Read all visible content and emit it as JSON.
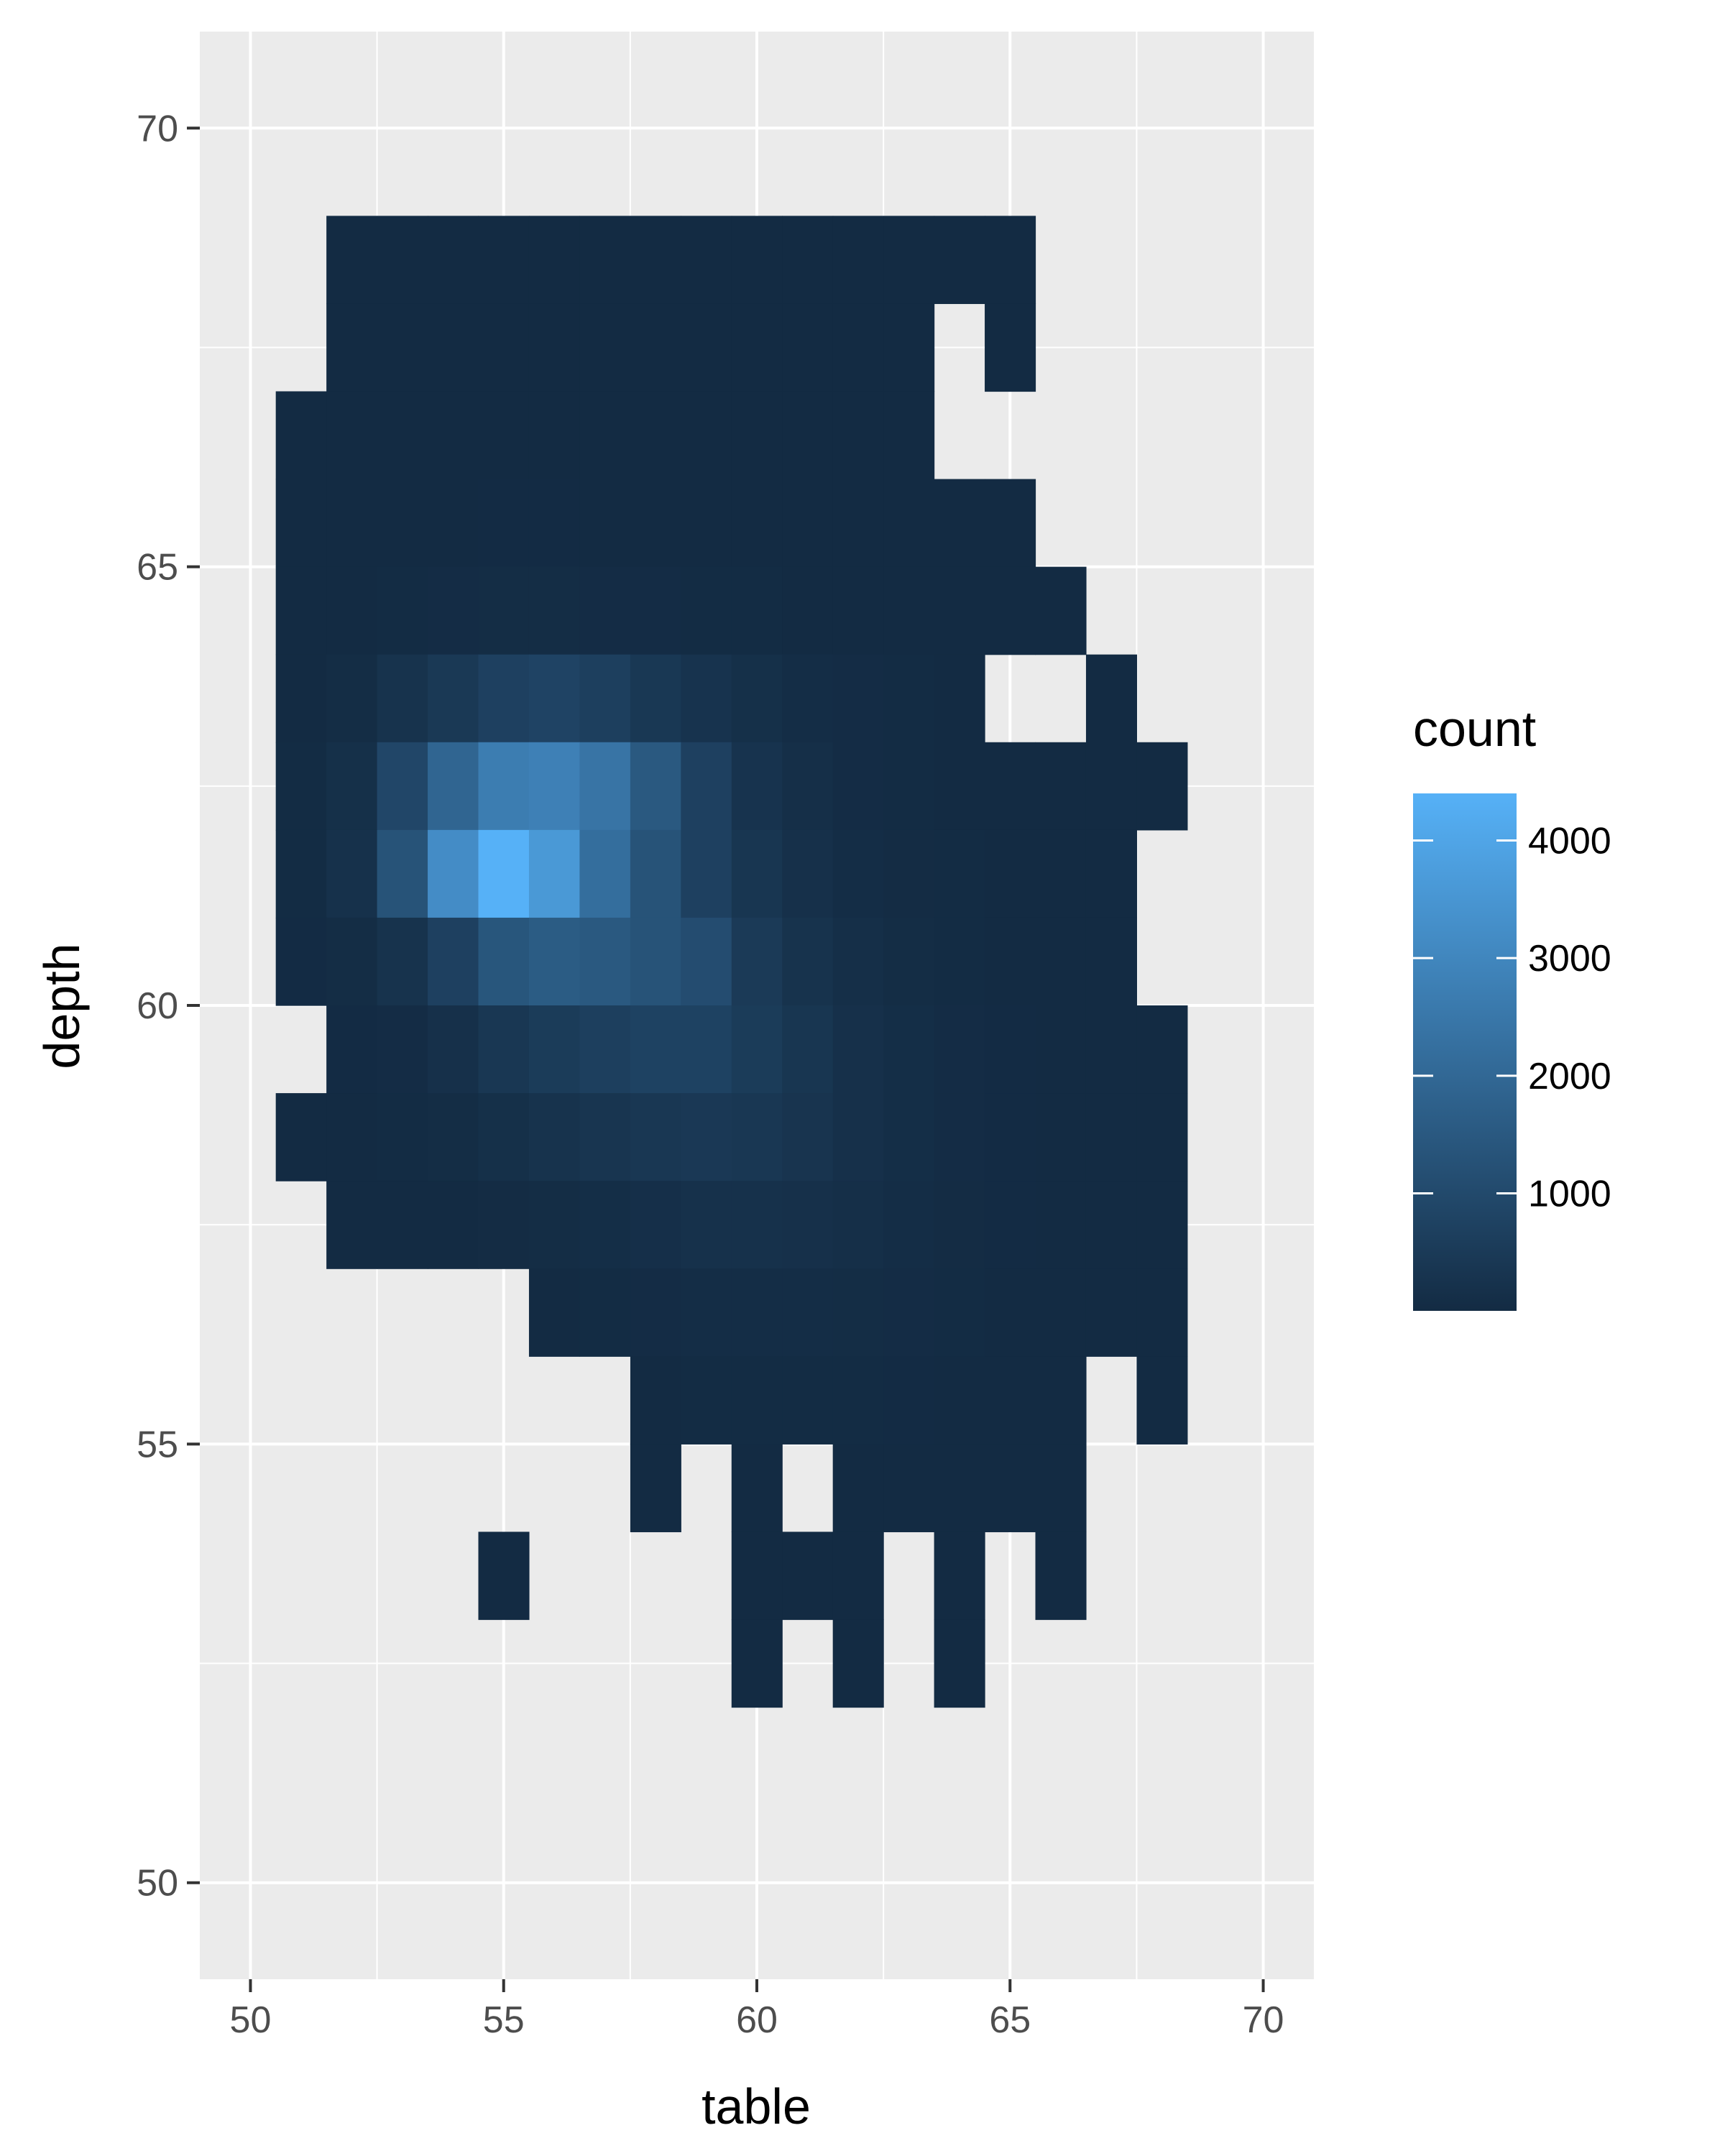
{
  "chart_data": {
    "type": "heatmap",
    "xlabel": "table",
    "ylabel": "depth",
    "xlim": [
      49,
      71
    ],
    "ylim": [
      48.9,
      71.1
    ],
    "x_ticks": [
      50,
      55,
      60,
      65,
      70
    ],
    "y_ticks": [
      50,
      55,
      60,
      65,
      70
    ],
    "grid": true,
    "bin_width": 1,
    "bin_height": 1,
    "legend": {
      "title": "count",
      "placement": "right",
      "breaks": [
        1000,
        2000,
        3000,
        4000
      ],
      "min": 1,
      "max": 4400,
      "color_low": "#132B43",
      "color_high": "#56B1F7"
    },
    "panel_background": "#EBEBEB",
    "grid_color": "#FFFFFF",
    "bins": [
      [
        52,
        68.5,
        1
      ],
      [
        53,
        68.5,
        1
      ],
      [
        54,
        68.5,
        1
      ],
      [
        55,
        68.5,
        1
      ],
      [
        56,
        68.5,
        1
      ],
      [
        57,
        68.5,
        1
      ],
      [
        58,
        68.5,
        1
      ],
      [
        59,
        68.5,
        1
      ],
      [
        60,
        68.5,
        1
      ],
      [
        61,
        68.5,
        1
      ],
      [
        62,
        68.5,
        1
      ],
      [
        63,
        68.5,
        1
      ],
      [
        64,
        68.5,
        1
      ],
      [
        65,
        68.5,
        1
      ],
      [
        52,
        67.5,
        1
      ],
      [
        53,
        67.5,
        2
      ],
      [
        54,
        67.5,
        2
      ],
      [
        55,
        67.5,
        2
      ],
      [
        56,
        67.5,
        2
      ],
      [
        57,
        67.5,
        2
      ],
      [
        58,
        67.5,
        2
      ],
      [
        59,
        67.5,
        1
      ],
      [
        60,
        67.5,
        1
      ],
      [
        61,
        67.5,
        1
      ],
      [
        62,
        67.5,
        1
      ],
      [
        63,
        67.5,
        1
      ],
      [
        65,
        67.5,
        1
      ],
      [
        51,
        66.5,
        1
      ],
      [
        52,
        66.5,
        2
      ],
      [
        53,
        66.5,
        3
      ],
      [
        54,
        66.5,
        4
      ],
      [
        55,
        66.5,
        4
      ],
      [
        56,
        66.5,
        4
      ],
      [
        57,
        66.5,
        3
      ],
      [
        58,
        66.5,
        3
      ],
      [
        59,
        66.5,
        2
      ],
      [
        60,
        66.5,
        2
      ],
      [
        61,
        66.5,
        2
      ],
      [
        62,
        66.5,
        1
      ],
      [
        63,
        66.5,
        1
      ],
      [
        51,
        65.5,
        2
      ],
      [
        52,
        65.5,
        3
      ],
      [
        53,
        65.5,
        6
      ],
      [
        54,
        65.5,
        12
      ],
      [
        55,
        65.5,
        15
      ],
      [
        56,
        65.5,
        14
      ],
      [
        57,
        65.5,
        12
      ],
      [
        58,
        65.5,
        10
      ],
      [
        59,
        65.5,
        7
      ],
      [
        60,
        65.5,
        5
      ],
      [
        61,
        65.5,
        4
      ],
      [
        62,
        65.5,
        3
      ],
      [
        63,
        65.5,
        2
      ],
      [
        64,
        65.5,
        1
      ],
      [
        65,
        65.5,
        1
      ],
      [
        51,
        64.5,
        4
      ],
      [
        52,
        64.5,
        8
      ],
      [
        53,
        64.5,
        25
      ],
      [
        54,
        64.5,
        45
      ],
      [
        55,
        64.5,
        60
      ],
      [
        56,
        64.5,
        55
      ],
      [
        57,
        64.5,
        50
      ],
      [
        58,
        64.5,
        40
      ],
      [
        59,
        64.5,
        30
      ],
      [
        60,
        64.5,
        20
      ],
      [
        61,
        64.5,
        12
      ],
      [
        62,
        64.5,
        8
      ],
      [
        63,
        64.5,
        5
      ],
      [
        64,
        64.5,
        3
      ],
      [
        65,
        64.5,
        2
      ],
      [
        66,
        64.5,
        1
      ],
      [
        51,
        63.5,
        10
      ],
      [
        52,
        63.5,
        60
      ],
      [
        53,
        63.5,
        250
      ],
      [
        54,
        63.5,
        450
      ],
      [
        55,
        63.5,
        700
      ],
      [
        56,
        63.5,
        800
      ],
      [
        57,
        63.5,
        650
      ],
      [
        58,
        63.5,
        420
      ],
      [
        59,
        63.5,
        280
      ],
      [
        60,
        63.5,
        150
      ],
      [
        61,
        63.5,
        80
      ],
      [
        62,
        63.5,
        40
      ],
      [
        63,
        63.5,
        20
      ],
      [
        64,
        63.5,
        10
      ],
      [
        67,
        63.5,
        1
      ],
      [
        51,
        62.5,
        20
      ],
      [
        52,
        62.5,
        150
      ],
      [
        53,
        62.5,
        900
      ],
      [
        54,
        62.5,
        1900
      ],
      [
        55,
        62.5,
        2700
      ],
      [
        56,
        62.5,
        2800
      ],
      [
        57,
        62.5,
        2400
      ],
      [
        58,
        62.5,
        1500
      ],
      [
        59,
        62.5,
        700
      ],
      [
        60,
        62.5,
        280
      ],
      [
        61,
        62.5,
        120
      ],
      [
        62,
        62.5,
        50
      ],
      [
        63,
        62.5,
        25
      ],
      [
        64,
        62.5,
        12
      ],
      [
        65,
        62.5,
        6
      ],
      [
        66,
        62.5,
        3
      ],
      [
        67,
        62.5,
        2
      ],
      [
        68,
        62.5,
        1
      ],
      [
        51,
        61.5,
        25
      ],
      [
        52,
        61.5,
        200
      ],
      [
        53,
        61.5,
        1300
      ],
      [
        54,
        61.5,
        3200
      ],
      [
        55,
        61.5,
        4400
      ],
      [
        56,
        61.5,
        3600
      ],
      [
        57,
        61.5,
        2200
      ],
      [
        58,
        61.5,
        1300
      ],
      [
        59,
        61.5,
        700
      ],
      [
        60,
        61.5,
        350
      ],
      [
        61,
        61.5,
        180
      ],
      [
        62,
        61.5,
        80
      ],
      [
        63,
        61.5,
        35
      ],
      [
        64,
        61.5,
        18
      ],
      [
        65,
        61.5,
        8
      ],
      [
        66,
        61.5,
        4
      ],
      [
        67,
        61.5,
        2
      ],
      [
        51,
        60.5,
        15
      ],
      [
        52,
        60.5,
        60
      ],
      [
        53,
        60.5,
        250
      ],
      [
        54,
        60.5,
        700
      ],
      [
        55,
        60.5,
        1400
      ],
      [
        56,
        60.5,
        1600
      ],
      [
        57,
        60.5,
        1500
      ],
      [
        58,
        60.5,
        1300
      ],
      [
        59,
        60.5,
        1100
      ],
      [
        60,
        60.5,
        500
      ],
      [
        61,
        60.5,
        250
      ],
      [
        62,
        60.5,
        120
      ],
      [
        63,
        60.5,
        60
      ],
      [
        64,
        60.5,
        25
      ],
      [
        65,
        60.5,
        12
      ],
      [
        66,
        60.5,
        5
      ],
      [
        67,
        60.5,
        2
      ],
      [
        52,
        59.5,
        15
      ],
      [
        53,
        59.5,
        50
      ],
      [
        54,
        59.5,
        180
      ],
      [
        55,
        59.5,
        400
      ],
      [
        56,
        59.5,
        550
      ],
      [
        57,
        59.5,
        650
      ],
      [
        58,
        59.5,
        750
      ],
      [
        59,
        59.5,
        750
      ],
      [
        60,
        59.5,
        550
      ],
      [
        61,
        59.5,
        350
      ],
      [
        62,
        59.5,
        180
      ],
      [
        63,
        59.5,
        90
      ],
      [
        64,
        59.5,
        40
      ],
      [
        65,
        59.5,
        15
      ],
      [
        66,
        59.5,
        6
      ],
      [
        67,
        59.5,
        3
      ],
      [
        68,
        59.5,
        1
      ],
      [
        51,
        58.5,
        3
      ],
      [
        52,
        58.5,
        8
      ],
      [
        53,
        58.5,
        20
      ],
      [
        54,
        58.5,
        60
      ],
      [
        55,
        58.5,
        150
      ],
      [
        56,
        58.5,
        250
      ],
      [
        57,
        58.5,
        320
      ],
      [
        58,
        58.5,
        400
      ],
      [
        59,
        58.5,
        430
      ],
      [
        60,
        58.5,
        400
      ],
      [
        61,
        58.5,
        300
      ],
      [
        62,
        58.5,
        180
      ],
      [
        63,
        58.5,
        90
      ],
      [
        64,
        58.5,
        40
      ],
      [
        65,
        58.5,
        15
      ],
      [
        66,
        58.5,
        6
      ],
      [
        67,
        58.5,
        3
      ],
      [
        68,
        58.5,
        1
      ],
      [
        52,
        57.5,
        2
      ],
      [
        53,
        57.5,
        5
      ],
      [
        54,
        57.5,
        12
      ],
      [
        55,
        57.5,
        35
      ],
      [
        56,
        57.5,
        60
      ],
      [
        57,
        57.5,
        90
      ],
      [
        58,
        57.5,
        140
      ],
      [
        59,
        57.5,
        190
      ],
      [
        60,
        57.5,
        200
      ],
      [
        61,
        57.5,
        170
      ],
      [
        62,
        57.5,
        120
      ],
      [
        63,
        57.5,
        70
      ],
      [
        64,
        57.5,
        35
      ],
      [
        65,
        57.5,
        15
      ],
      [
        66,
        57.5,
        6
      ],
      [
        67,
        57.5,
        3
      ],
      [
        68,
        57.5,
        1
      ],
      [
        56,
        56.5,
        10
      ],
      [
        57,
        56.5,
        20
      ],
      [
        58,
        56.5,
        40
      ],
      [
        59,
        56.5,
        65
      ],
      [
        60,
        56.5,
        80
      ],
      [
        61,
        56.5,
        75
      ],
      [
        62,
        56.5,
        60
      ],
      [
        63,
        56.5,
        40
      ],
      [
        64,
        56.5,
        20
      ],
      [
        65,
        56.5,
        10
      ],
      [
        66,
        56.5,
        5
      ],
      [
        67,
        56.5,
        2
      ],
      [
        68,
        56.5,
        1
      ],
      [
        58,
        55.5,
        10
      ],
      [
        59,
        55.5,
        18
      ],
      [
        60,
        55.5,
        25
      ],
      [
        61,
        55.5,
        25
      ],
      [
        62,
        55.5,
        22
      ],
      [
        63,
        55.5,
        15
      ],
      [
        64,
        55.5,
        10
      ],
      [
        65,
        55.5,
        5
      ],
      [
        66,
        55.5,
        2
      ],
      [
        68,
        55.5,
        1
      ],
      [
        58,
        54.5,
        3
      ],
      [
        60,
        54.5,
        6
      ],
      [
        62,
        54.5,
        8
      ],
      [
        63,
        54.5,
        6
      ],
      [
        64,
        54.5,
        4
      ],
      [
        65,
        54.5,
        3
      ],
      [
        66,
        54.5,
        1
      ],
      [
        55,
        53.5,
        1
      ],
      [
        60,
        53.5,
        2
      ],
      [
        61,
        53.5,
        2
      ],
      [
        62,
        53.5,
        2
      ],
      [
        64,
        53.5,
        1
      ],
      [
        66,
        53.5,
        1
      ],
      [
        60,
        52.5,
        1
      ],
      [
        62,
        52.5,
        1
      ],
      [
        64,
        52.5,
        1
      ]
    ]
  }
}
